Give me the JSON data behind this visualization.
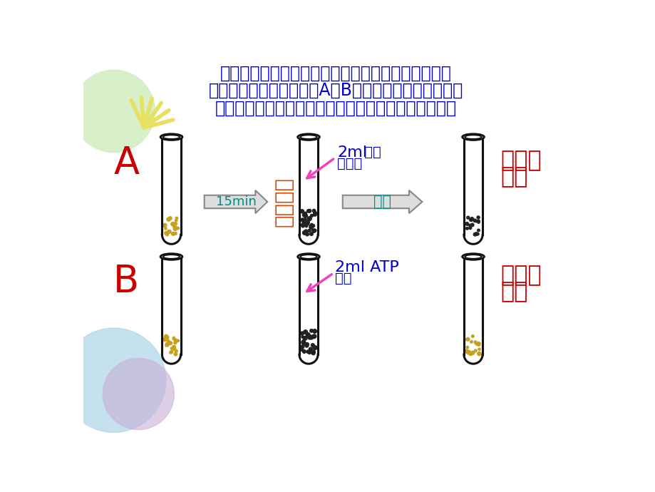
{
  "bg_color": "#ffffff",
  "title_line1": "用小刀将数十只萤火虫的发光器割下，干燥后研磨成",
  "title_line2": "粉末，取两等份分别装入A、B两支试管，各加入少量水",
  "title_line3": "使之混合，置于暗处，可见试管内有淡黄色荧光出现。",
  "title_color": "#0000cc",
  "label_A": "A",
  "label_B": "B",
  "label_color": "#cc0000",
  "glucose_bold": "2ml",
  "glucose_normal": " 葡萄",
  "glucose_line2": "糖溶液",
  "atp_bold": "2ml ATP",
  "atp_line2": "溶液",
  "sol_color": "#0000cc",
  "result_top_1": "无荧光",
  "result_top_2": "出现",
  "result_bot_1": "有荧光",
  "result_bot_2": "出现",
  "result_color": "#cc0000",
  "arrow1_label": "15min",
  "arrow1_color": "#008888",
  "arrow2_label": "暗处",
  "arrow2_color": "#008888",
  "vert_label": "发光素酶",
  "vert_color": "#dd4400",
  "tube_color": "#111111",
  "dot_yellow": "#c8a020",
  "dot_dark": "#222222",
  "arrow_fill": "#dddddd",
  "arrow_edge": "#888888",
  "pink_arrow": "#ee44bb",
  "circle_green": "#d0eec0",
  "circle_blue": "#b0d8e8",
  "circle_purple": "#c8b0d8",
  "ray_color": "#e8e060"
}
